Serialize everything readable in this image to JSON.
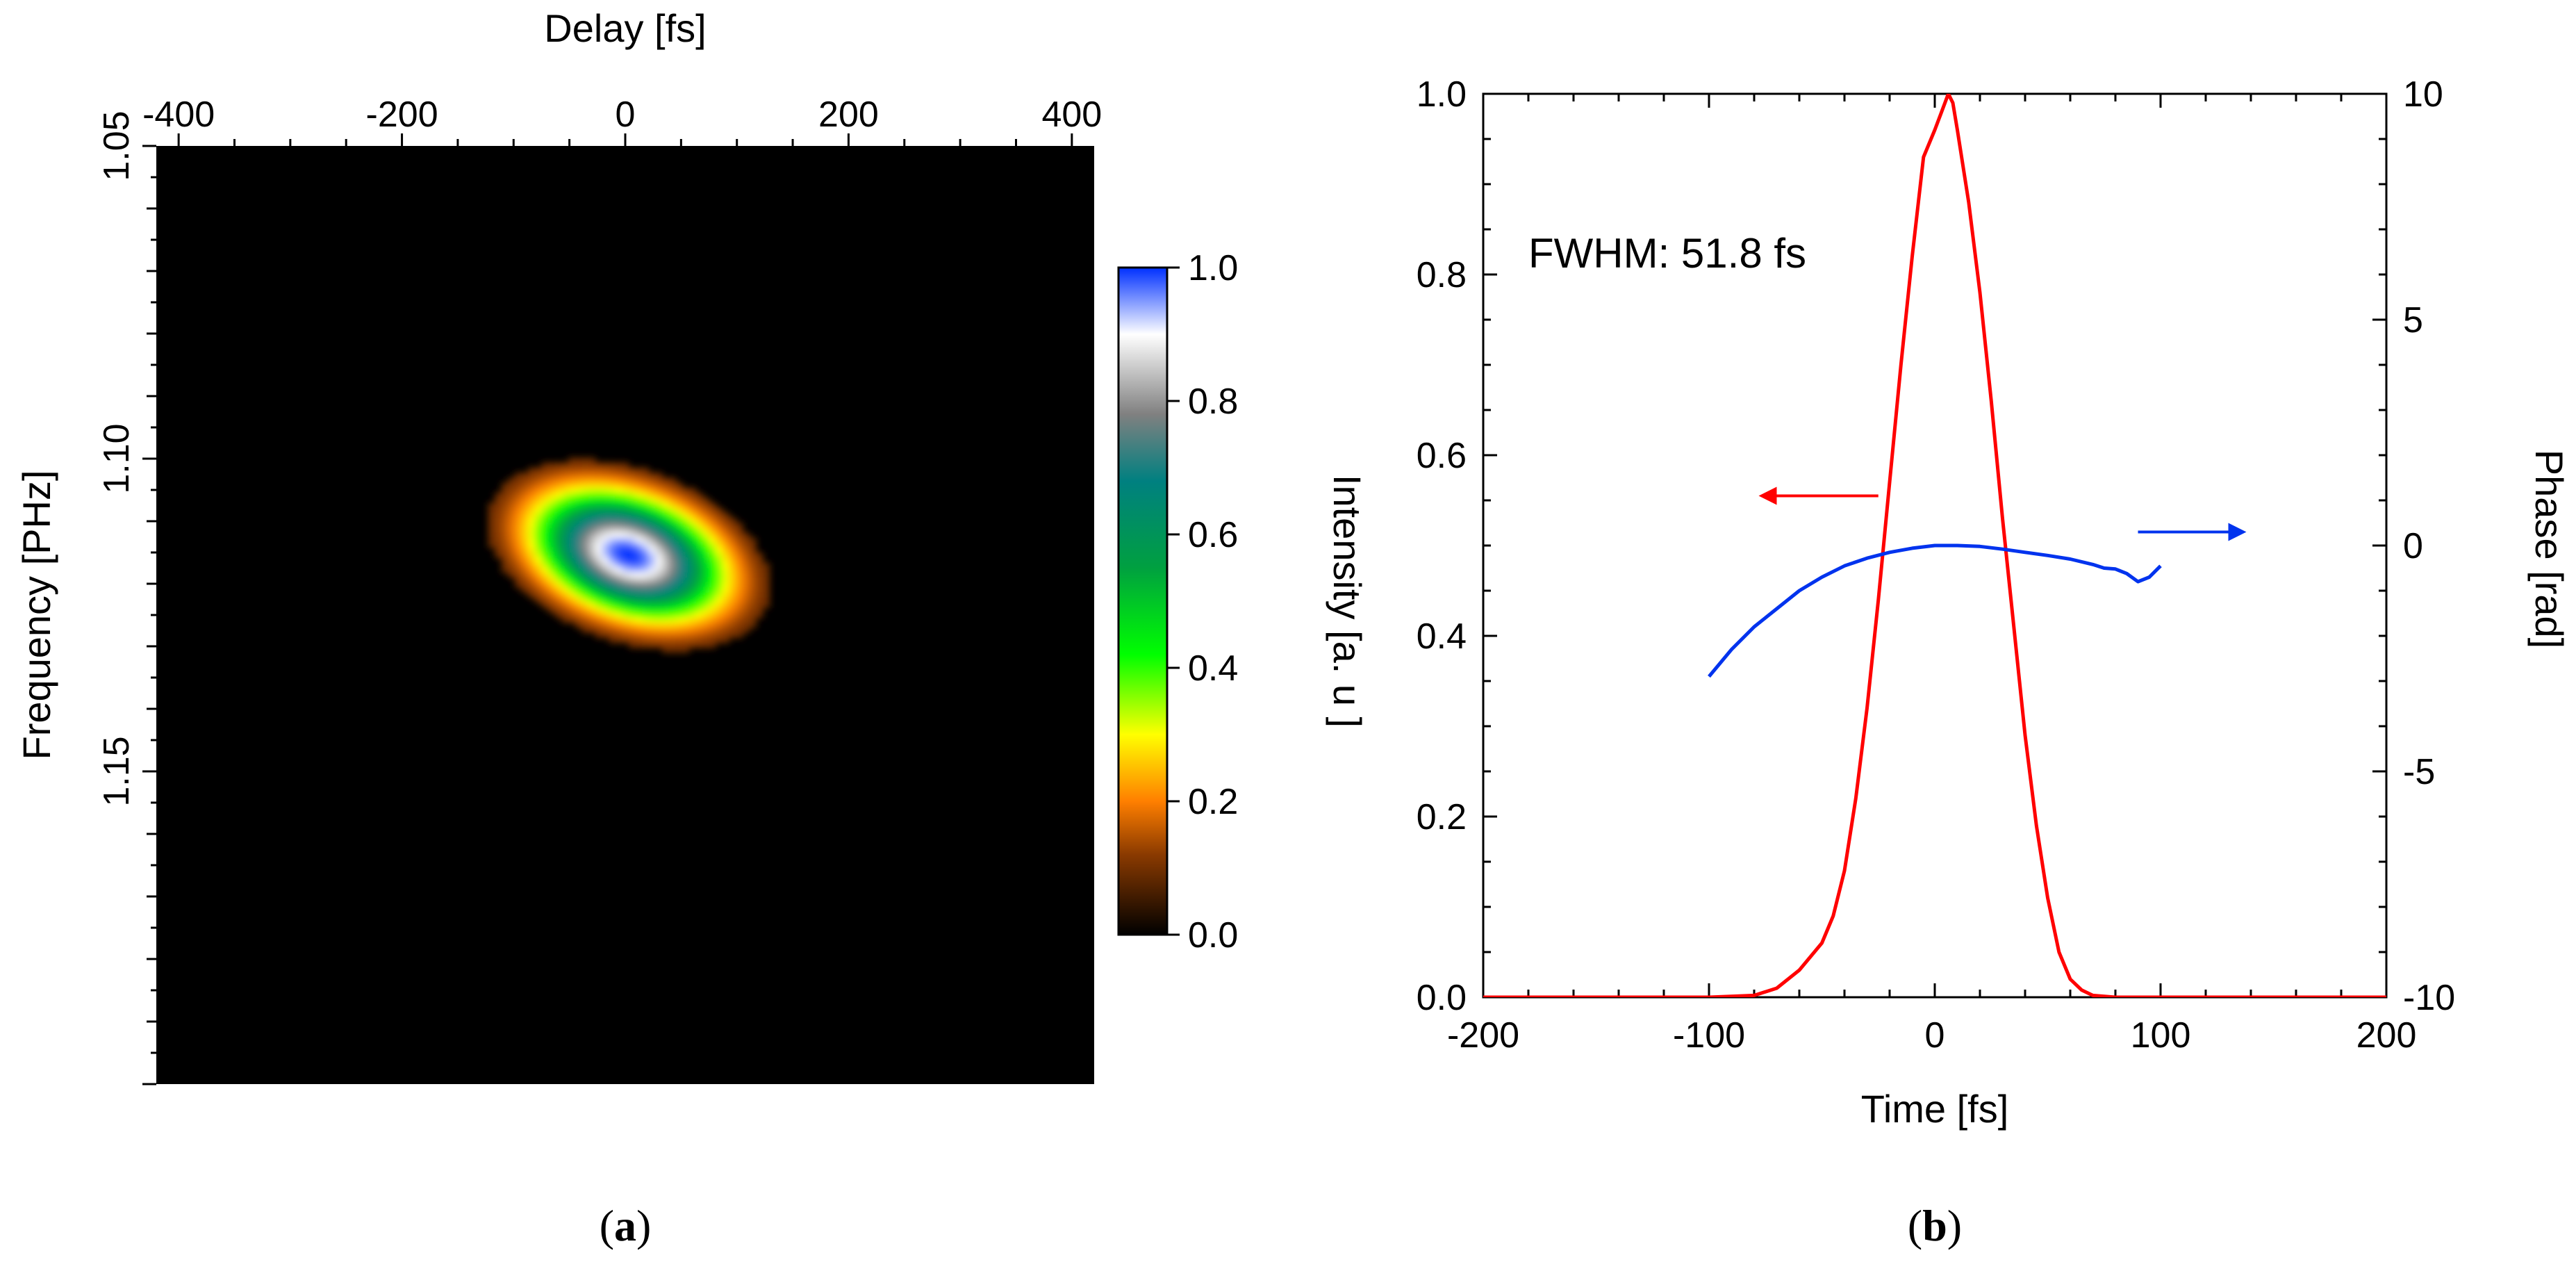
{
  "chart_data": [
    {
      "panel": "a",
      "panel_label": "a",
      "type": "heatmap",
      "xlabel": "Delay [fs]",
      "ylabel": "Frequency [PHz]",
      "xlim": [
        -420,
        420
      ],
      "ylim": [
        1.05,
        1.2
      ],
      "y_inverted": true,
      "x_ticks": [
        -400,
        -200,
        0,
        200,
        400
      ],
      "x_tick_labels": [
        "-400",
        "-200",
        "0",
        "200",
        "400"
      ],
      "y_ticks": [
        1.05,
        1.1,
        1.15
      ],
      "y_tick_labels": [
        "1.05",
        "1.10",
        "1.15"
      ],
      "background_value": 0.0,
      "blob": {
        "center_delay": 0,
        "center_frequency": 1.115,
        "delay_halfwidth": 105,
        "frequency_halfwidth": 0.012,
        "tilt_frequency_per_fs": 4e-05,
        "peak_value": 1.0
      },
      "colorbar": {
        "label": "Intensity [a. u ]",
        "min": 0.0,
        "max": 1.0,
        "ticks": [
          0.0,
          0.2,
          0.4,
          0.6,
          0.8,
          1.0
        ],
        "tick_labels": [
          "0.0",
          "0.2",
          "0.4",
          "0.6",
          "0.8",
          "1.0"
        ],
        "colormap": [
          {
            "v": 0.0,
            "color": "#000000"
          },
          {
            "v": 0.12,
            "color": "#8a3a00"
          },
          {
            "v": 0.2,
            "color": "#ff7f00"
          },
          {
            "v": 0.3,
            "color": "#ffff00"
          },
          {
            "v": 0.42,
            "color": "#00ff00"
          },
          {
            "v": 0.55,
            "color": "#00a040"
          },
          {
            "v": 0.68,
            "color": "#008080"
          },
          {
            "v": 0.78,
            "color": "#808080"
          },
          {
            "v": 0.9,
            "color": "#ffffff"
          },
          {
            "v": 1.0,
            "color": "#0030ff"
          }
        ]
      }
    },
    {
      "panel": "b",
      "panel_label": "b",
      "type": "line",
      "xlabel": "Time [fs]",
      "ylabel": "",
      "y2label": "Phase [rad]",
      "xlim": [
        -200,
        200
      ],
      "ylim": [
        0.0,
        1.0
      ],
      "y2lim": [
        -10,
        10
      ],
      "x_ticks": [
        -200,
        -100,
        0,
        100,
        200
      ],
      "x_tick_labels": [
        "-200",
        "-100",
        "0",
        "100",
        "200"
      ],
      "y_ticks": [
        0.0,
        0.2,
        0.4,
        0.6,
        0.8,
        1.0
      ],
      "y_tick_labels": [
        "0.0",
        "0.2",
        "0.4",
        "0.6",
        "0.8",
        "1.0"
      ],
      "y2_ticks": [
        -10,
        -5,
        0,
        5,
        10
      ],
      "y2_tick_labels": [
        "-10",
        "-5",
        "0",
        "5",
        "10"
      ],
      "annotation": "FWHM: 51.8 fs",
      "series": [
        {
          "axis": "left",
          "color": "#ff0000",
          "x": [
            -200,
            -100,
            -80,
            -70,
            -60,
            -50,
            -45,
            -40,
            -35,
            -30,
            -25,
            -20,
            -15,
            -10,
            -5,
            0,
            3,
            6,
            8,
            10,
            15,
            20,
            25,
            30,
            35,
            40,
            45,
            50,
            55,
            60,
            65,
            70,
            80,
            100,
            200
          ],
          "y": [
            0.0,
            0.0,
            0.002,
            0.01,
            0.03,
            0.06,
            0.09,
            0.14,
            0.22,
            0.32,
            0.44,
            0.57,
            0.7,
            0.82,
            0.93,
            0.96,
            0.98,
            1.0,
            0.99,
            0.96,
            0.88,
            0.78,
            0.66,
            0.53,
            0.41,
            0.29,
            0.19,
            0.11,
            0.05,
            0.02,
            0.008,
            0.002,
            0.0,
            0.0,
            0.0
          ]
        },
        {
          "axis": "right",
          "color": "#0033ee",
          "x": [
            -100,
            -90,
            -80,
            -70,
            -60,
            -50,
            -40,
            -30,
            -20,
            -10,
            0,
            10,
            20,
            30,
            40,
            50,
            60,
            70,
            75,
            80,
            85,
            90,
            95,
            100
          ],
          "y": [
            -2.9,
            -2.3,
            -1.8,
            -1.4,
            -1.0,
            -0.7,
            -0.45,
            -0.28,
            -0.15,
            -0.06,
            0.0,
            0.0,
            -0.02,
            -0.08,
            -0.15,
            -0.22,
            -0.3,
            -0.42,
            -0.5,
            -0.52,
            -0.62,
            -0.8,
            -0.7,
            -0.45
          ]
        }
      ],
      "arrows": [
        {
          "target_axis": "left",
          "direction": "left",
          "color": "#ff0000",
          "x_from": -25,
          "x_to": -70,
          "y_right": 1.1
        },
        {
          "target_axis": "right",
          "direction": "right",
          "color": "#0033ee",
          "x_from": 90,
          "x_to": 130,
          "y_right": 0.3
        }
      ]
    }
  ]
}
